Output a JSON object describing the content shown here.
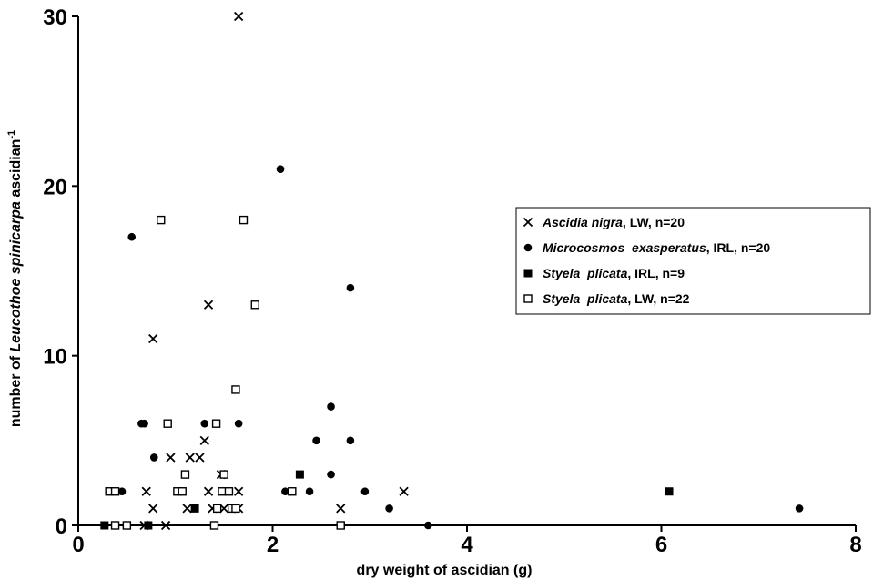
{
  "chart_data": {
    "type": "scatter",
    "xlabel": "dry weight of ascidian (g)",
    "ylabel": {
      "prefix": "number of ",
      "species": "Leucothoe spinicarpa",
      "suffix": " ascidian",
      "superscript": "-1"
    },
    "xlim": [
      0,
      8
    ],
    "ylim": [
      0,
      30
    ],
    "xticks": [
      0,
      2,
      4,
      6,
      8
    ],
    "yticks": [
      0,
      10,
      20,
      30
    ],
    "grid": false,
    "legend_position": "right",
    "series": [
      {
        "name": {
          "species": "Ascidia nigra",
          "rest": ", LW, n=20"
        },
        "marker": "x",
        "points": [
          [
            1.65,
            30
          ],
          [
            1.34,
            13
          ],
          [
            0.77,
            11
          ],
          [
            1.3,
            5
          ],
          [
            1.15,
            4
          ],
          [
            1.25,
            4
          ],
          [
            0.95,
            4
          ],
          [
            1.47,
            3
          ],
          [
            0.7,
            2
          ],
          [
            1.34,
            2
          ],
          [
            1.65,
            2
          ],
          [
            3.35,
            2
          ],
          [
            0.77,
            1
          ],
          [
            1.12,
            1
          ],
          [
            1.38,
            1
          ],
          [
            1.5,
            1
          ],
          [
            1.65,
            1
          ],
          [
            2.7,
            1
          ],
          [
            0.68,
            0
          ],
          [
            0.9,
            0
          ]
        ]
      },
      {
        "name": {
          "species": "Microcosmos  exasperatus",
          "rest": ", IRL, n=20"
        },
        "marker": "dot",
        "points": [
          [
            2.08,
            21
          ],
          [
            0.55,
            17
          ],
          [
            2.8,
            14
          ],
          [
            2.6,
            7
          ],
          [
            0.65,
            6
          ],
          [
            0.68,
            6
          ],
          [
            1.3,
            6
          ],
          [
            1.65,
            6
          ],
          [
            0.78,
            4
          ],
          [
            2.45,
            5
          ],
          [
            2.8,
            5
          ],
          [
            2.6,
            3
          ],
          [
            0.45,
            2
          ],
          [
            2.13,
            2
          ],
          [
            2.38,
            2
          ],
          [
            2.95,
            2
          ],
          [
            3.2,
            1
          ],
          [
            7.42,
            1
          ],
          [
            3.6,
            0
          ],
          [
            0.72,
            0
          ]
        ]
      },
      {
        "name": {
          "species": "Styela  plicata",
          "rest": ", IRL, n=9"
        },
        "marker": "filled-square",
        "points": [
          [
            2.28,
            3
          ],
          [
            6.08,
            2
          ],
          [
            1.2,
            1
          ],
          [
            0.27,
            0
          ],
          [
            0.72,
            0
          ],
          [
            1.4,
            0
          ],
          [
            0.5,
            0
          ],
          [
            1.6,
            1
          ],
          [
            2.7,
            0
          ]
        ]
      },
      {
        "name": {
          "species": "Styela  plicata",
          "rest": ", LW, n=22"
        },
        "marker": "open-square",
        "points": [
          [
            0.85,
            18
          ],
          [
            1.7,
            18
          ],
          [
            1.82,
            13
          ],
          [
            1.62,
            8
          ],
          [
            0.92,
            6
          ],
          [
            1.42,
            6
          ],
          [
            1.1,
            3
          ],
          [
            1.5,
            3
          ],
          [
            0.32,
            2
          ],
          [
            0.38,
            2
          ],
          [
            1.02,
            2
          ],
          [
            1.07,
            2
          ],
          [
            1.48,
            2
          ],
          [
            1.55,
            2
          ],
          [
            2.2,
            2
          ],
          [
            1.43,
            1
          ],
          [
            1.58,
            1
          ],
          [
            1.62,
            1
          ],
          [
            0.38,
            0
          ],
          [
            0.5,
            0
          ],
          [
            1.4,
            0
          ],
          [
            2.7,
            0
          ]
        ]
      }
    ]
  }
}
